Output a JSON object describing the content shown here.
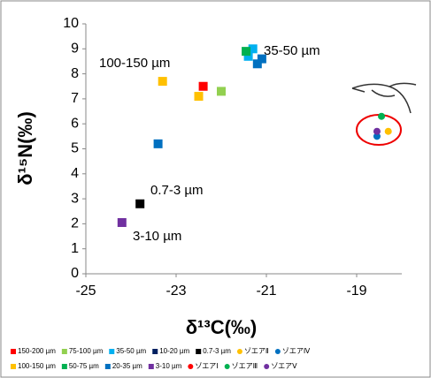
{
  "chart_data": {
    "type": "scatter",
    "xlabel": "δ¹³C(‰)",
    "ylabel": "δ¹⁵N(‰)",
    "xlim": [
      -25,
      -18
    ],
    "xticks": [
      -25,
      -23,
      -21,
      -19
    ],
    "ylim": [
      0,
      10
    ],
    "yticks": [
      0,
      1,
      2,
      3,
      4,
      5,
      6,
      7,
      8,
      9,
      10
    ],
    "series": [
      {
        "name": "150-200 µm",
        "color": "#ff0000",
        "marker": "square",
        "x": [
          -22.4
        ],
        "y": [
          7.5
        ]
      },
      {
        "name": "75-100 µm",
        "color": "#92d050",
        "marker": "square",
        "x": [
          -22.0
        ],
        "y": [
          7.3
        ]
      },
      {
        "name": "35-50 µm",
        "color": "#00b0f0",
        "marker": "square",
        "x": [
          -21.3,
          -21.4
        ],
        "y": [
          9.0,
          8.7
        ]
      },
      {
        "name": "10-20 µm",
        "color": "#002060",
        "marker": "square",
        "x": [],
        "y": []
      },
      {
        "name": "0.7-3 µm",
        "color": "#000000",
        "marker": "square",
        "x": [
          -23.8
        ],
        "y": [
          2.8
        ]
      },
      {
        "name": "ゾエアⅡ",
        "color": "#ffc000",
        "marker": "circle",
        "x": [
          -18.3
        ],
        "y": [
          5.7
        ]
      },
      {
        "name": "ゾエアⅣ",
        "color": "#0070c0",
        "marker": "circle",
        "x": [
          -18.55
        ],
        "y": [
          5.5
        ]
      },
      {
        "name": "100-150 µm",
        "color": "#ffc000",
        "marker": "square",
        "x": [
          -23.3,
          -22.5
        ],
        "y": [
          7.7,
          7.1
        ]
      },
      {
        "name": "50-75 µm",
        "color": "#00b050",
        "marker": "square",
        "x": [
          -21.45
        ],
        "y": [
          8.9
        ]
      },
      {
        "name": "20-35 µm",
        "color": "#0070c0",
        "marker": "square",
        "x": [
          -23.4,
          -21.2,
          -21.1
        ],
        "y": [
          5.2,
          8.4,
          8.6
        ]
      },
      {
        "name": "3-10 µm",
        "color": "#7030a0",
        "marker": "square",
        "x": [
          -24.2
        ],
        "y": [
          2.05
        ]
      },
      {
        "name": "ゾエアⅠ",
        "color": "#ff0000",
        "marker": "circle",
        "x": [],
        "y": []
      },
      {
        "name": "ゾエアⅢ",
        "color": "#00b050",
        "marker": "circle",
        "x": [
          -18.45
        ],
        "y": [
          6.3
        ]
      },
      {
        "name": "ゾエアⅤ",
        "color": "#7030a0",
        "marker": "circle",
        "x": [
          -18.55
        ],
        "y": [
          5.7
        ]
      }
    ],
    "annotations": [
      "35-50 µm",
      "100-150 µm",
      "0.7-3 µm",
      "3-10 µm"
    ],
    "legend": "bottom"
  }
}
